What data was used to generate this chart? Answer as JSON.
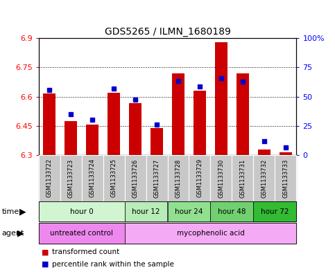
{
  "title": "GDS5265 / ILMN_1680189",
  "samples": [
    "GSM1133722",
    "GSM1133723",
    "GSM1133724",
    "GSM1133725",
    "GSM1133726",
    "GSM1133727",
    "GSM1133728",
    "GSM1133729",
    "GSM1133730",
    "GSM1133731",
    "GSM1133732",
    "GSM1133733"
  ],
  "red_values": [
    6.615,
    6.475,
    6.455,
    6.62,
    6.565,
    6.44,
    6.72,
    6.63,
    6.88,
    6.72,
    6.33,
    6.315
  ],
  "blue_values": [
    6.635,
    6.51,
    6.48,
    6.64,
    6.585,
    6.455,
    6.68,
    6.65,
    6.695,
    6.675,
    6.37,
    6.34
  ],
  "ymin": 6.3,
  "ymax": 6.9,
  "yticks": [
    6.3,
    6.45,
    6.6,
    6.75,
    6.9
  ],
  "ytick_labels": [
    "6.3",
    "6.45",
    "6.6",
    "6.75",
    "6.9"
  ],
  "right_ytick_labels": [
    "0",
    "25",
    "50",
    "75",
    "100%"
  ],
  "time_groups": [
    {
      "label": "hour 0",
      "start": 0,
      "end": 3,
      "color": "#d0f5d0"
    },
    {
      "label": "hour 12",
      "start": 4,
      "end": 5,
      "color": "#b8ecb8"
    },
    {
      "label": "hour 24",
      "start": 6,
      "end": 7,
      "color": "#90e090"
    },
    {
      "label": "hour 48",
      "start": 8,
      "end": 9,
      "color": "#70d070"
    },
    {
      "label": "hour 72",
      "start": 10,
      "end": 11,
      "color": "#33bb33"
    }
  ],
  "agent_untreated_color": "#ee88ee",
  "agent_myco_color": "#f5aaf5",
  "bar_color": "#cc0000",
  "blue_marker_color": "#0000cc",
  "sample_box_color": "#c8c8c8",
  "legend_red_label": "transformed count",
  "legend_blue_label": "percentile rank within the sample"
}
